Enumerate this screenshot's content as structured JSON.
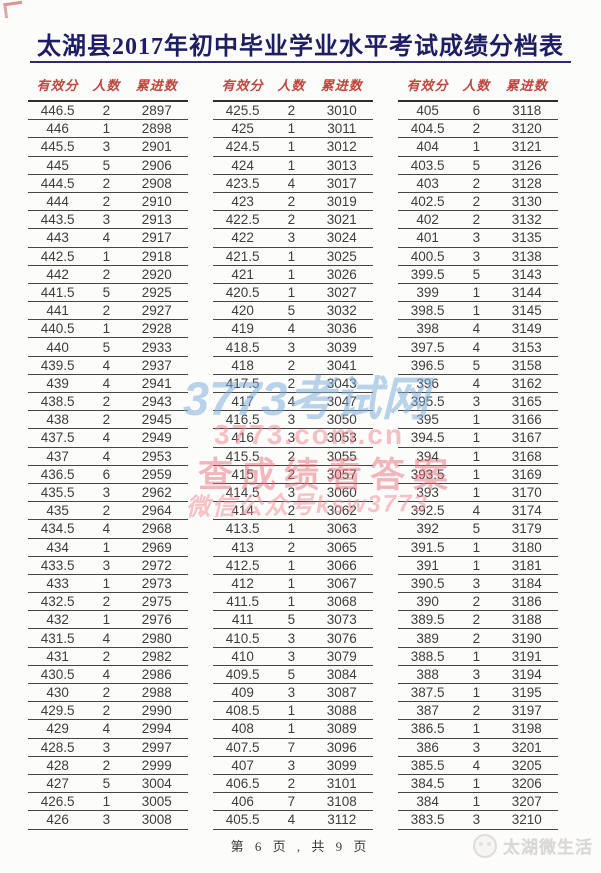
{
  "title": "太湖县2017年初中毕业学业水平考试成绩分档表",
  "columns": [
    "有效分",
    "人数",
    "累进数"
  ],
  "tables": [
    {
      "rows": [
        [
          "446.5",
          "2",
          "2897"
        ],
        [
          "446",
          "1",
          "2898"
        ],
        [
          "445.5",
          "3",
          "2901"
        ],
        [
          "445",
          "5",
          "2906"
        ],
        [
          "444.5",
          "2",
          "2908"
        ],
        [
          "444",
          "2",
          "2910"
        ],
        [
          "443.5",
          "3",
          "2913"
        ],
        [
          "443",
          "4",
          "2917"
        ],
        [
          "442.5",
          "1",
          "2918"
        ],
        [
          "442",
          "2",
          "2920"
        ],
        [
          "441.5",
          "5",
          "2925"
        ],
        [
          "441",
          "2",
          "2927"
        ],
        [
          "440.5",
          "1",
          "2928"
        ],
        [
          "440",
          "5",
          "2933"
        ],
        [
          "439.5",
          "4",
          "2937"
        ],
        [
          "439",
          "4",
          "2941"
        ],
        [
          "438.5",
          "2",
          "2943"
        ],
        [
          "438",
          "2",
          "2945"
        ],
        [
          "437.5",
          "4",
          "2949"
        ],
        [
          "437",
          "4",
          "2953"
        ],
        [
          "436.5",
          "6",
          "2959"
        ],
        [
          "435.5",
          "3",
          "2962"
        ],
        [
          "435",
          "2",
          "2964"
        ],
        [
          "434.5",
          "4",
          "2968"
        ],
        [
          "434",
          "1",
          "2969"
        ],
        [
          "433.5",
          "3",
          "2972"
        ],
        [
          "433",
          "1",
          "2973"
        ],
        [
          "432.5",
          "2",
          "2975"
        ],
        [
          "432",
          "1",
          "2976"
        ],
        [
          "431.5",
          "4",
          "2980"
        ],
        [
          "431",
          "2",
          "2982"
        ],
        [
          "430.5",
          "4",
          "2986"
        ],
        [
          "430",
          "2",
          "2988"
        ],
        [
          "429.5",
          "2",
          "2990"
        ],
        [
          "429",
          "4",
          "2994"
        ],
        [
          "428.5",
          "3",
          "2997"
        ],
        [
          "428",
          "2",
          "2999"
        ],
        [
          "427",
          "5",
          "3004"
        ],
        [
          "426.5",
          "1",
          "3005"
        ],
        [
          "426",
          "3",
          "3008"
        ]
      ]
    },
    {
      "rows": [
        [
          "425.5",
          "2",
          "3010"
        ],
        [
          "425",
          "1",
          "3011"
        ],
        [
          "424.5",
          "1",
          "3012"
        ],
        [
          "424",
          "1",
          "3013"
        ],
        [
          "423.5",
          "4",
          "3017"
        ],
        [
          "423",
          "2",
          "3019"
        ],
        [
          "422.5",
          "2",
          "3021"
        ],
        [
          "422",
          "3",
          "3024"
        ],
        [
          "421.5",
          "1",
          "3025"
        ],
        [
          "421",
          "1",
          "3026"
        ],
        [
          "420.5",
          "1",
          "3027"
        ],
        [
          "420",
          "5",
          "3032"
        ],
        [
          "419",
          "4",
          "3036"
        ],
        [
          "418.5",
          "3",
          "3039"
        ],
        [
          "418",
          "2",
          "3041"
        ],
        [
          "417.5",
          "2",
          "3043"
        ],
        [
          "417",
          "4",
          "3047"
        ],
        [
          "416.5",
          "3",
          "3050"
        ],
        [
          "416",
          "3",
          "3053"
        ],
        [
          "415.5",
          "2",
          "3055"
        ],
        [
          "415",
          "2",
          "3057"
        ],
        [
          "414.5",
          "3",
          "3060"
        ],
        [
          "414",
          "2",
          "3062"
        ],
        [
          "413.5",
          "1",
          "3063"
        ],
        [
          "413",
          "2",
          "3065"
        ],
        [
          "412.5",
          "1",
          "3066"
        ],
        [
          "412",
          "1",
          "3067"
        ],
        [
          "411.5",
          "1",
          "3068"
        ],
        [
          "411",
          "5",
          "3073"
        ],
        [
          "410.5",
          "3",
          "3076"
        ],
        [
          "410",
          "3",
          "3079"
        ],
        [
          "409.5",
          "5",
          "3084"
        ],
        [
          "409",
          "3",
          "3087"
        ],
        [
          "408.5",
          "1",
          "3088"
        ],
        [
          "408",
          "1",
          "3089"
        ],
        [
          "407.5",
          "7",
          "3096"
        ],
        [
          "407",
          "3",
          "3099"
        ],
        [
          "406.5",
          "2",
          "3101"
        ],
        [
          "406",
          "7",
          "3108"
        ],
        [
          "405.5",
          "4",
          "3112"
        ]
      ]
    },
    {
      "rows": [
        [
          "405",
          "6",
          "3118"
        ],
        [
          "404.5",
          "2",
          "3120"
        ],
        [
          "404",
          "1",
          "3121"
        ],
        [
          "403.5",
          "5",
          "3126"
        ],
        [
          "403",
          "2",
          "3128"
        ],
        [
          "402.5",
          "2",
          "3130"
        ],
        [
          "402",
          "2",
          "3132"
        ],
        [
          "401",
          "3",
          "3135"
        ],
        [
          "400.5",
          "3",
          "3138"
        ],
        [
          "399.5",
          "5",
          "3143"
        ],
        [
          "399",
          "1",
          "3144"
        ],
        [
          "398.5",
          "1",
          "3145"
        ],
        [
          "398",
          "4",
          "3149"
        ],
        [
          "397.5",
          "4",
          "3153"
        ],
        [
          "396.5",
          "5",
          "3158"
        ],
        [
          "396",
          "4",
          "3162"
        ],
        [
          "395.5",
          "3",
          "3165"
        ],
        [
          "395",
          "1",
          "3166"
        ],
        [
          "394.5",
          "1",
          "3167"
        ],
        [
          "394",
          "1",
          "3168"
        ],
        [
          "393.5",
          "1",
          "3169"
        ],
        [
          "393",
          "1",
          "3170"
        ],
        [
          "392.5",
          "4",
          "3174"
        ],
        [
          "392",
          "5",
          "3179"
        ],
        [
          "391.5",
          "1",
          "3180"
        ],
        [
          "391",
          "1",
          "3181"
        ],
        [
          "390.5",
          "3",
          "3184"
        ],
        [
          "390",
          "2",
          "3186"
        ],
        [
          "389.5",
          "2",
          "3188"
        ],
        [
          "389",
          "2",
          "3190"
        ],
        [
          "388.5",
          "1",
          "3191"
        ],
        [
          "388",
          "3",
          "3194"
        ],
        [
          "387.5",
          "1",
          "3195"
        ],
        [
          "387",
          "2",
          "3197"
        ],
        [
          "386.5",
          "1",
          "3198"
        ],
        [
          "386",
          "3",
          "3201"
        ],
        [
          "385.5",
          "4",
          "3205"
        ],
        [
          "384.5",
          "1",
          "3206"
        ],
        [
          "384",
          "1",
          "3207"
        ],
        [
          "383.5",
          "3",
          "3210"
        ]
      ]
    }
  ],
  "watermark": {
    "site": "3773考试网",
    "url": "3773.com.cn",
    "slogan": "查成绩看答案",
    "wechat": "微信公众号ksw3773"
  },
  "footer": {
    "page_info": "第 6 页 , 共 9 页"
  },
  "brand": {
    "label": "太湖微生活"
  },
  "colors": {
    "title_navy": "#1d1d66",
    "header_red": "#c2453e",
    "rule_navy": "#2b2b72",
    "row_line": "#454545",
    "watermark_blue": "#7dafda",
    "watermark_pink": "#f08c96",
    "corner_red": "#cc3c3c"
  }
}
